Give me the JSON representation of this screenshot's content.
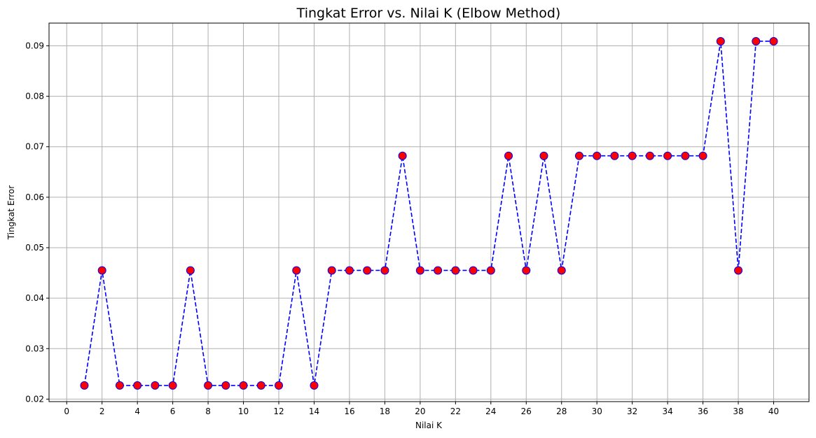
{
  "chart_data": {
    "type": "line",
    "title": "Tingkat Error vs. Nilai K (Elbow Method)",
    "xlabel": "Nilai K",
    "ylabel": "Tingkat Error",
    "xlim": [
      -1,
      42
    ],
    "ylim": [
      0.0195,
      0.0945
    ],
    "xticks": [
      0,
      2,
      4,
      6,
      8,
      10,
      12,
      14,
      16,
      18,
      20,
      22,
      24,
      26,
      28,
      30,
      32,
      34,
      36,
      38,
      40
    ],
    "yticks": [
      0.02,
      0.03,
      0.04,
      0.05,
      0.06,
      0.07,
      0.08,
      0.09
    ],
    "ytick_labels": [
      "0.02",
      "0.03",
      "0.04",
      "0.05",
      "0.06",
      "0.07",
      "0.08",
      "0.09"
    ],
    "grid": true,
    "series": [
      {
        "x": [
          1,
          2,
          3,
          4,
          5,
          6,
          7,
          8,
          9,
          10,
          11,
          12,
          13,
          14,
          15,
          16,
          17,
          18,
          19,
          20,
          21,
          22,
          23,
          24,
          25,
          26,
          27,
          28,
          29,
          30,
          31,
          32,
          33,
          34,
          35,
          36,
          37,
          38,
          39,
          40
        ],
        "values": [
          0.0227,
          0.0455,
          0.0227,
          0.0227,
          0.0227,
          0.0227,
          0.0455,
          0.0227,
          0.0227,
          0.0227,
          0.0227,
          0.0227,
          0.0455,
          0.0227,
          0.0455,
          0.0455,
          0.0455,
          0.0455,
          0.0682,
          0.0455,
          0.0455,
          0.0455,
          0.0455,
          0.0455,
          0.0682,
          0.0455,
          0.0682,
          0.0455,
          0.0682,
          0.0682,
          0.0682,
          0.0682,
          0.0682,
          0.0682,
          0.0682,
          0.0682,
          0.0909,
          0.0455,
          0.0909,
          0.0909
        ],
        "line_color": "#0000ff",
        "line_style": "dashed",
        "marker": "circle",
        "marker_face": "#ff0000",
        "marker_edge": "#0000ff"
      }
    ]
  }
}
